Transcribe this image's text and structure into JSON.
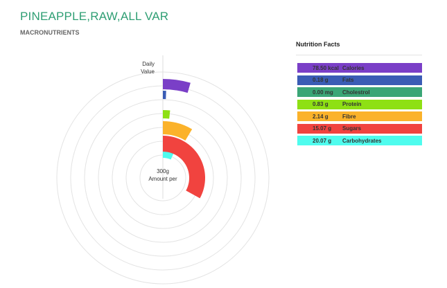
{
  "title": "PINEAPPLE,RAW,ALL VAR",
  "subtitle": "MACRONUTRIENTS",
  "facts_title": "Nutrition Facts",
  "colors": {
    "title": "#2e9e73",
    "ring": "#e3e3e3",
    "axis": "#dddddd"
  },
  "chart_data": {
    "type": "radial-bar",
    "axis_label_lines": [
      "Daily",
      "Value"
    ],
    "center_label_lines": [
      "300g",
      "Amount per"
    ],
    "max_value": 100,
    "grid": true,
    "series": [
      {
        "name": "Calories",
        "amount": "78.50 kcal",
        "value": 4.5,
        "color": "#7a3fc7"
      },
      {
        "name": "Fats",
        "amount": "0.18 g",
        "value": 0.6,
        "color": "#3a5cb5"
      },
      {
        "name": "Cholestrol",
        "amount": "0.00 mg",
        "value": 0,
        "color": "#3aa676"
      },
      {
        "name": "Protein",
        "amount": "0.83 g",
        "value": 1.7,
        "color": "#8ee014"
      },
      {
        "name": "Fibre",
        "amount": "2.14 g",
        "value": 8.6,
        "color": "#fbb22a"
      },
      {
        "name": "Sugars",
        "amount": "15.07 g",
        "value": 33,
        "color": "#f1433f"
      },
      {
        "name": "Carbohydrates",
        "amount": "20.07 g",
        "value": 6.5,
        "color": "#4ffcee"
      }
    ]
  }
}
